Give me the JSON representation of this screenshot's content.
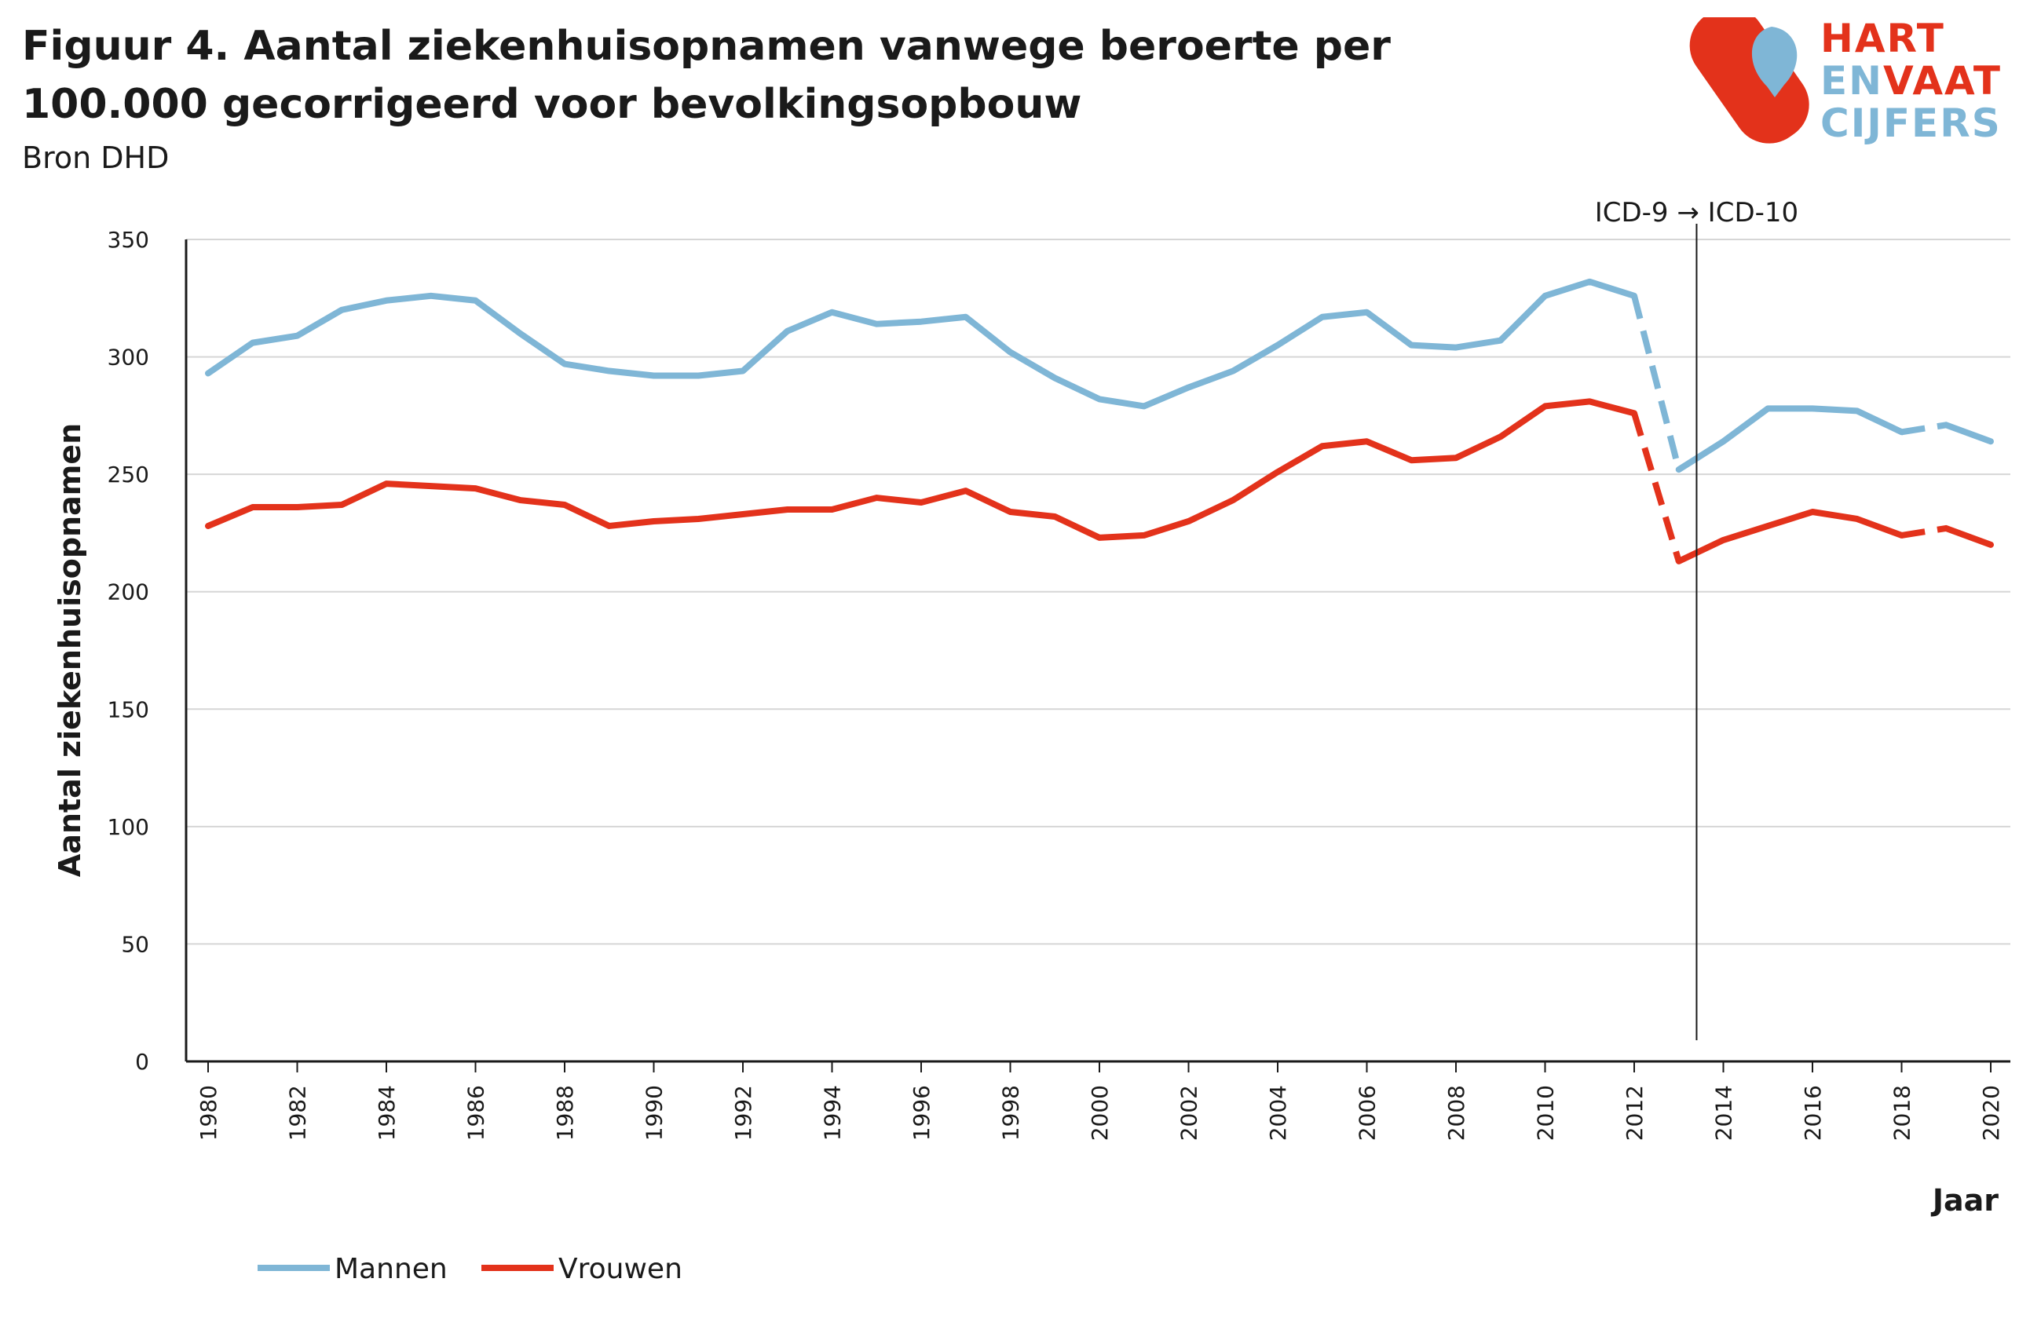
{
  "header": {
    "title": "Figuur 4. Aantal ziekenhuisopnamen vanwege beroerte per 100.000 gecorrigeerd voor bevolkingsopbouw",
    "source": "Bron DHD"
  },
  "logo": {
    "line1": "HART",
    "line2a": "EN",
    "line2b": "VAAT",
    "line3": "CIJFERS",
    "colors": {
      "red": "#e3321b",
      "blue": "#7fb6d6"
    }
  },
  "chart_data": {
    "type": "line",
    "title": "Figuur 4. Aantal ziekenhuisopnamen vanwege beroerte per 100.000 gecorrigeerd voor bevolkingsopbouw",
    "xlabel": "Jaar",
    "ylabel": "Aantal ziekenhuisopnamen",
    "ylim": [
      0,
      350
    ],
    "yticks": [
      0,
      50,
      100,
      150,
      200,
      250,
      300,
      350
    ],
    "xticks": [
      1980,
      1982,
      1984,
      1986,
      1988,
      1990,
      1992,
      1994,
      1996,
      1998,
      2000,
      2002,
      2004,
      2006,
      2008,
      2010,
      2012,
      2014,
      2016,
      2018,
      2020
    ],
    "x": [
      1980,
      1981,
      1982,
      1983,
      1984,
      1985,
      1986,
      1987,
      1988,
      1989,
      1990,
      1991,
      1992,
      1993,
      1994,
      1995,
      1996,
      1997,
      1998,
      1999,
      2000,
      2001,
      2002,
      2003,
      2004,
      2005,
      2006,
      2007,
      2008,
      2009,
      2010,
      2011,
      2012,
      2013,
      2014,
      2015,
      2016,
      2017,
      2018,
      2019,
      2020
    ],
    "grid": true,
    "legend": "bottom-left",
    "dashed_segments": [
      [
        2012,
        2013
      ],
      [
        2018,
        2019
      ]
    ],
    "annotation": {
      "text": "ICD-9 → ICD-10",
      "x": 2013.4
    },
    "series": [
      {
        "name": "Mannen",
        "color": "#7fb6d6",
        "values": [
          293,
          306,
          309,
          320,
          324,
          326,
          324,
          310,
          297,
          294,
          292,
          292,
          294,
          311,
          319,
          314,
          315,
          317,
          302,
          291,
          282,
          279,
          287,
          294,
          305,
          317,
          319,
          305,
          304,
          307,
          326,
          332,
          326,
          252,
          264,
          278,
          278,
          277,
          268,
          271,
          264
        ]
      },
      {
        "name": "Vrouwen",
        "color": "#e3321b",
        "values": [
          228,
          236,
          236,
          237,
          246,
          245,
          244,
          239,
          237,
          228,
          230,
          231,
          233,
          235,
          235,
          240,
          238,
          243,
          234,
          232,
          223,
          224,
          230,
          239,
          251,
          262,
          264,
          256,
          257,
          266,
          279,
          281,
          276,
          213,
          222,
          228,
          234,
          231,
          224,
          227,
          220
        ]
      }
    ]
  }
}
